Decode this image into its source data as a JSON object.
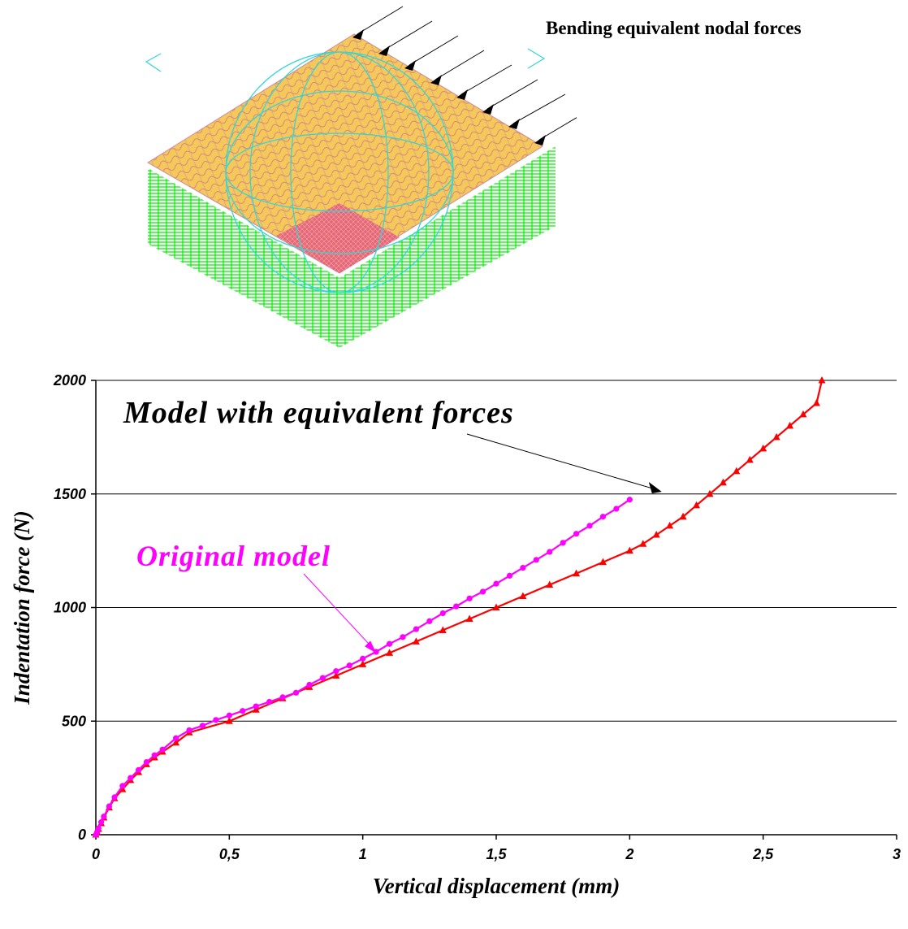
{
  "figure": {
    "caption": "Bending equivalent nodal forces",
    "model_icon": "fe-mesh-plate-icon"
  },
  "colors": {
    "equivalent_series": "#ff0000",
    "original_series": "#ff00ff",
    "grid": "#000000",
    "plate_top": "#f4c95a",
    "support_springs": "#00ee00"
  },
  "chart_data": {
    "type": "line",
    "xlabel": "Vertical displacement (mm)",
    "ylabel": "Indentation force (N)",
    "xlim": [
      0,
      3
    ],
    "ylim": [
      0,
      2000
    ],
    "x_ticks": [
      0,
      0.5,
      1,
      1.5,
      2,
      2.5,
      3
    ],
    "x_tick_labels": [
      "0",
      "0,5",
      "1",
      "1,5",
      "2",
      "2,5",
      "3"
    ],
    "y_ticks": [
      0,
      500,
      1000,
      1500,
      2000
    ],
    "y_tick_labels": [
      "0",
      "500",
      "1000",
      "1500",
      "2000"
    ],
    "grid": "horizontal",
    "annotations": [
      {
        "text": "Model with equivalent forces",
        "target": {
          "x": 2.12,
          "y": 1510
        }
      },
      {
        "text": "Original model",
        "target": {
          "x": 1.05,
          "y": 800
        }
      }
    ],
    "series": [
      {
        "name": "Model with equivalent forces",
        "marker": "triangle",
        "x": [
          0,
          0.005,
          0.01,
          0.02,
          0.03,
          0.05,
          0.07,
          0.1,
          0.13,
          0.16,
          0.19,
          0.22,
          0.25,
          0.3,
          0.35,
          0.5,
          0.6,
          0.7,
          0.8,
          0.9,
          1.0,
          1.1,
          1.2,
          1.3,
          1.4,
          1.5,
          1.6,
          1.7,
          1.8,
          1.9,
          2.0,
          2.05,
          2.1,
          2.15,
          2.2,
          2.25,
          2.3,
          2.35,
          2.4,
          2.45,
          2.5,
          2.55,
          2.6,
          2.65,
          2.7,
          2.72
        ],
        "y": [
          0,
          10,
          25,
          50,
          75,
          120,
          160,
          200,
          240,
          275,
          310,
          340,
          365,
          405,
          450,
          500,
          550,
          600,
          650,
          700,
          750,
          800,
          850,
          900,
          950,
          1000,
          1050,
          1100,
          1150,
          1200,
          1250,
          1280,
          1320,
          1360,
          1400,
          1450,
          1500,
          1550,
          1600,
          1650,
          1700,
          1750,
          1800,
          1850,
          1900,
          2000
        ]
      },
      {
        "name": "Original model",
        "marker": "circle",
        "x": [
          0,
          0.005,
          0.01,
          0.02,
          0.03,
          0.05,
          0.07,
          0.1,
          0.13,
          0.16,
          0.19,
          0.22,
          0.25,
          0.3,
          0.35,
          0.4,
          0.45,
          0.5,
          0.55,
          0.6,
          0.65,
          0.7,
          0.75,
          0.8,
          0.85,
          0.9,
          0.95,
          1.0,
          1.05,
          1.1,
          1.15,
          1.2,
          1.25,
          1.3,
          1.35,
          1.4,
          1.45,
          1.5,
          1.55,
          1.6,
          1.65,
          1.7,
          1.75,
          1.8,
          1.85,
          1.9,
          1.95,
          2.0
        ],
        "y": [
          0,
          12,
          28,
          55,
          80,
          125,
          165,
          215,
          250,
          285,
          320,
          350,
          375,
          425,
          460,
          480,
          505,
          525,
          545,
          565,
          585,
          605,
          625,
          660,
          690,
          720,
          745,
          775,
          805,
          840,
          870,
          905,
          940,
          975,
          1005,
          1040,
          1070,
          1105,
          1140,
          1175,
          1210,
          1245,
          1285,
          1325,
          1360,
          1400,
          1435,
          1475
        ]
      }
    ]
  }
}
